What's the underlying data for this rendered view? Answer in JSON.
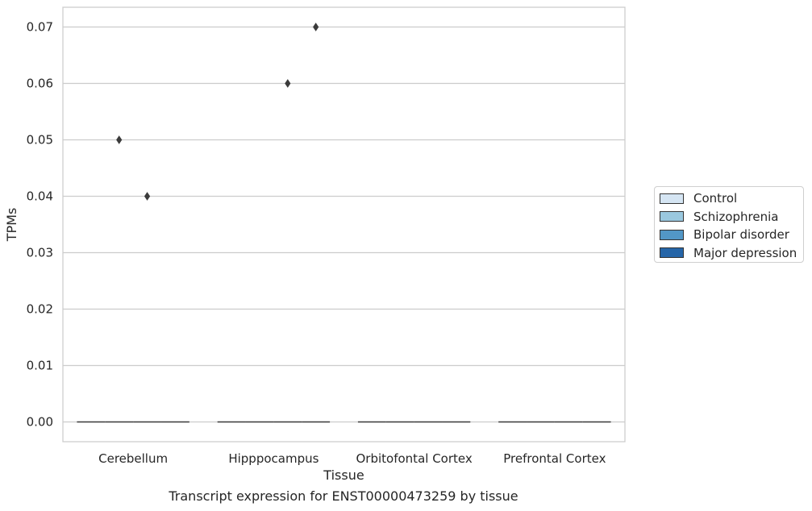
{
  "chart_data": {
    "type": "box",
    "xlabel": "Tissue",
    "ylabel": "TPMs",
    "caption": "Transcript expression for ENST00000473259 by tissue",
    "ylim": [
      -0.0035,
      0.0735
    ],
    "yticks": [
      "0.00",
      "0.01",
      "0.02",
      "0.03",
      "0.04",
      "0.05",
      "0.06",
      "0.07"
    ],
    "categories": [
      "Cerebellum",
      "Hipppocampus",
      "Orbitofontal Cortex",
      "Prefrontal Cortex"
    ],
    "grid": true,
    "legend_position": "right",
    "series": [
      {
        "name": "Control",
        "color": "#d5e5f3",
        "medians": [
          0,
          0,
          0,
          0
        ]
      },
      {
        "name": "Schizophrenia",
        "color": "#9ac8df",
        "medians": [
          0,
          0,
          0,
          0
        ]
      },
      {
        "name": "Bipolar disorder",
        "color": "#5297c6",
        "medians": [
          0,
          0,
          0,
          0
        ]
      },
      {
        "name": "Major depression",
        "color": "#2565a8",
        "medians": [
          0,
          0,
          0,
          0
        ]
      }
    ],
    "outliers": [
      {
        "category": "Cerebellum",
        "series": "Schizophrenia",
        "value": 0.05
      },
      {
        "category": "Cerebellum",
        "series": "Bipolar disorder",
        "value": 0.04
      },
      {
        "category": "Hipppocampus",
        "series": "Bipolar disorder",
        "value": 0.06
      },
      {
        "category": "Hipppocampus",
        "series": "Major depression",
        "value": 0.07
      }
    ]
  }
}
